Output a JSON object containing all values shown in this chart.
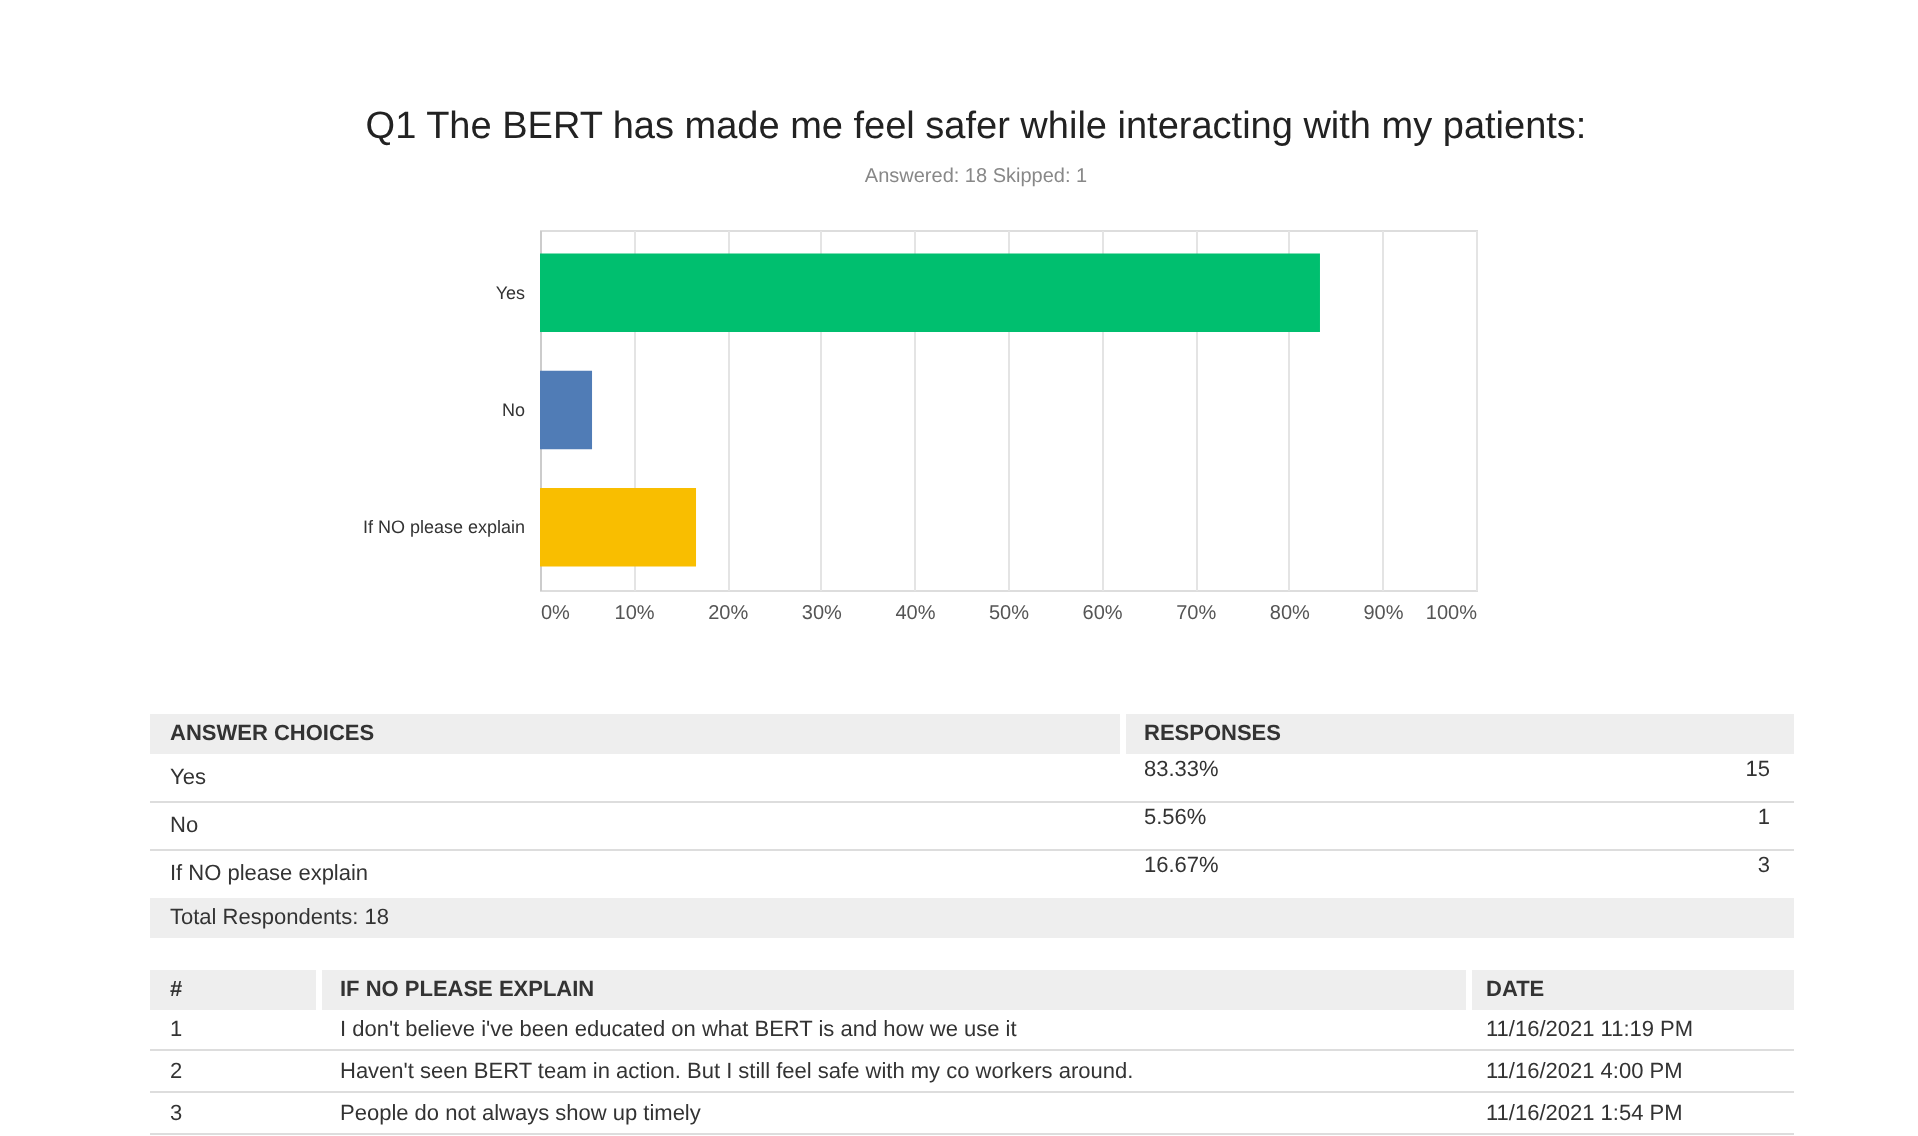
{
  "chart_data": {
    "type": "bar",
    "orientation": "horizontal",
    "title": "Q1 The BERT has made me feel safer while interacting with my patients:",
    "subtitle": "Answered: 18    Skipped: 1",
    "categories": [
      "Yes",
      "No",
      "If NO please explain"
    ],
    "values": [
      83.33,
      5.56,
      16.67
    ],
    "colors": [
      "#00bf6f",
      "#507cb6",
      "#f9be00"
    ],
    "xlim": [
      0,
      100
    ],
    "xticks": [
      {
        "value": 0,
        "label": "0%"
      },
      {
        "value": 10,
        "label": "10%"
      },
      {
        "value": 20,
        "label": "20%"
      },
      {
        "value": 30,
        "label": "30%"
      },
      {
        "value": 40,
        "label": "40%"
      },
      {
        "value": 50,
        "label": "50%"
      },
      {
        "value": 60,
        "label": "60%"
      },
      {
        "value": 70,
        "label": "70%"
      },
      {
        "value": 80,
        "label": "80%"
      },
      {
        "value": 90,
        "label": "90%"
      },
      {
        "value": 100,
        "label": "100%"
      }
    ],
    "grid": "x",
    "annotations": [
      "ANSWER CHOICES",
      "RESPONSES",
      "83.33%",
      "15",
      "5.56%",
      "1",
      "16.67%",
      "3",
      "Total Respondents: 18",
      "#",
      "IF NO PLEASE EXPLAIN",
      "DATE",
      "1",
      "I don't believe i've been educated on what BERT is and how we use it",
      "11/16/2021 11:19 PM",
      "2",
      "Haven't seen BERT team in action. But I still feel safe with my co workers around.",
      "11/16/2021 4:00 PM",
      "3",
      "People do not always show up timely",
      "11/16/2021 1:54 PM"
    ]
  }
}
